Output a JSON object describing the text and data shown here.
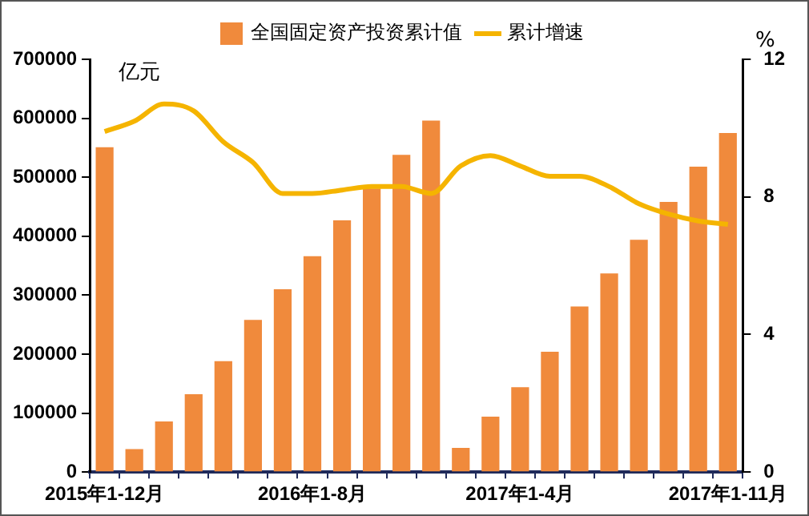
{
  "chart_data": {
    "type": "bar",
    "ylabel": "亿元",
    "y2label": "%",
    "categories": [
      "2015年1-12月",
      null,
      null,
      null,
      null,
      null,
      null,
      "2016年1-8月",
      null,
      null,
      null,
      null,
      null,
      null,
      "2017年1-4月",
      null,
      null,
      null,
      null,
      null,
      null,
      "2017年1-11月"
    ],
    "series": [
      {
        "name": "全国固定资产投资累计值",
        "color": "#f08a3c",
        "values": [
          551000,
          39000,
          86000,
          132000,
          188000,
          258000,
          310000,
          366000,
          427000,
          481000,
          538000,
          596000,
          41000,
          94000,
          144000,
          204000,
          281000,
          337000,
          394000,
          458000,
          518000,
          575000
        ]
      },
      {
        "name": "累计增速",
        "type": "line",
        "axis": "y2",
        "color": "#f5b400",
        "values": [
          9.9,
          10.2,
          10.7,
          10.5,
          9.6,
          9.0,
          8.1,
          8.1,
          8.2,
          8.3,
          8.3,
          8.1,
          8.9,
          9.2,
          8.9,
          8.6,
          8.6,
          8.3,
          7.8,
          7.5,
          7.3,
          7.2
        ]
      }
    ],
    "ylim": [
      0,
      700000
    ],
    "yticks": [
      0,
      100000,
      200000,
      300000,
      400000,
      500000,
      600000,
      700000
    ],
    "y2lim": [
      0,
      12
    ],
    "y2ticks": [
      0,
      4,
      8,
      12
    ],
    "grid": false,
    "legend": "top",
    "marker": "none",
    "line_style": "solid"
  }
}
